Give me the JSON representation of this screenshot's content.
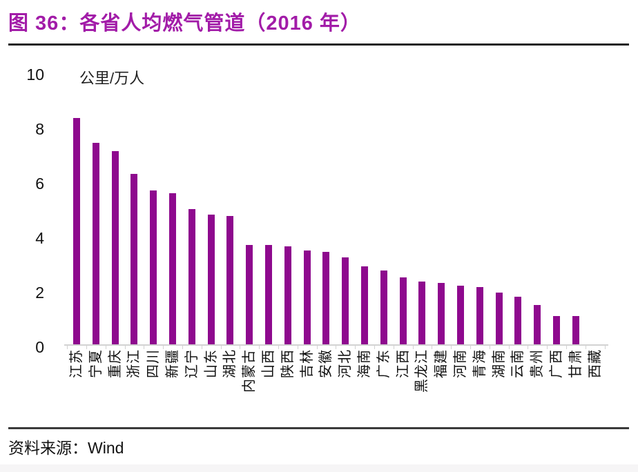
{
  "figure": {
    "title": "图 36：各省人均燃气管道（2016 年）"
  },
  "chart_data": {
    "type": "bar",
    "title": "各省人均燃气管道（2016 年）",
    "unit_label": "公里/万人",
    "ylabel": "公里/万人",
    "xlabel": "",
    "ylim": [
      0,
      10
    ],
    "yticks": [
      0,
      2,
      4,
      6,
      8,
      10
    ],
    "grid": false,
    "legend": false,
    "bar_color": "#8E098E",
    "categories": [
      "江苏",
      "宁夏",
      "重庆",
      "浙江",
      "四川",
      "新疆",
      "辽宁",
      "山东",
      "湖北",
      "内蒙古",
      "山西",
      "陕西",
      "吉林",
      "安徽",
      "河北",
      "海南",
      "广东",
      "江西",
      "黑龙江",
      "福建",
      "河南",
      "青海",
      "湖南",
      "云南",
      "贵州",
      "广西",
      "甘肃",
      "西藏"
    ],
    "values": [
      8.35,
      7.45,
      7.15,
      6.3,
      5.7,
      5.6,
      5.0,
      4.8,
      4.75,
      3.7,
      3.7,
      3.65,
      3.5,
      3.45,
      3.25,
      2.9,
      2.75,
      2.5,
      2.35,
      2.3,
      2.2,
      2.15,
      1.95,
      1.8,
      1.5,
      1.1,
      1.1,
      0
    ]
  },
  "source": {
    "label": "资料来源：Wind"
  },
  "colors": {
    "title": "#A21CA8",
    "bar": "#8E098E",
    "axis": "#D2D2D2",
    "text": "#111111"
  }
}
